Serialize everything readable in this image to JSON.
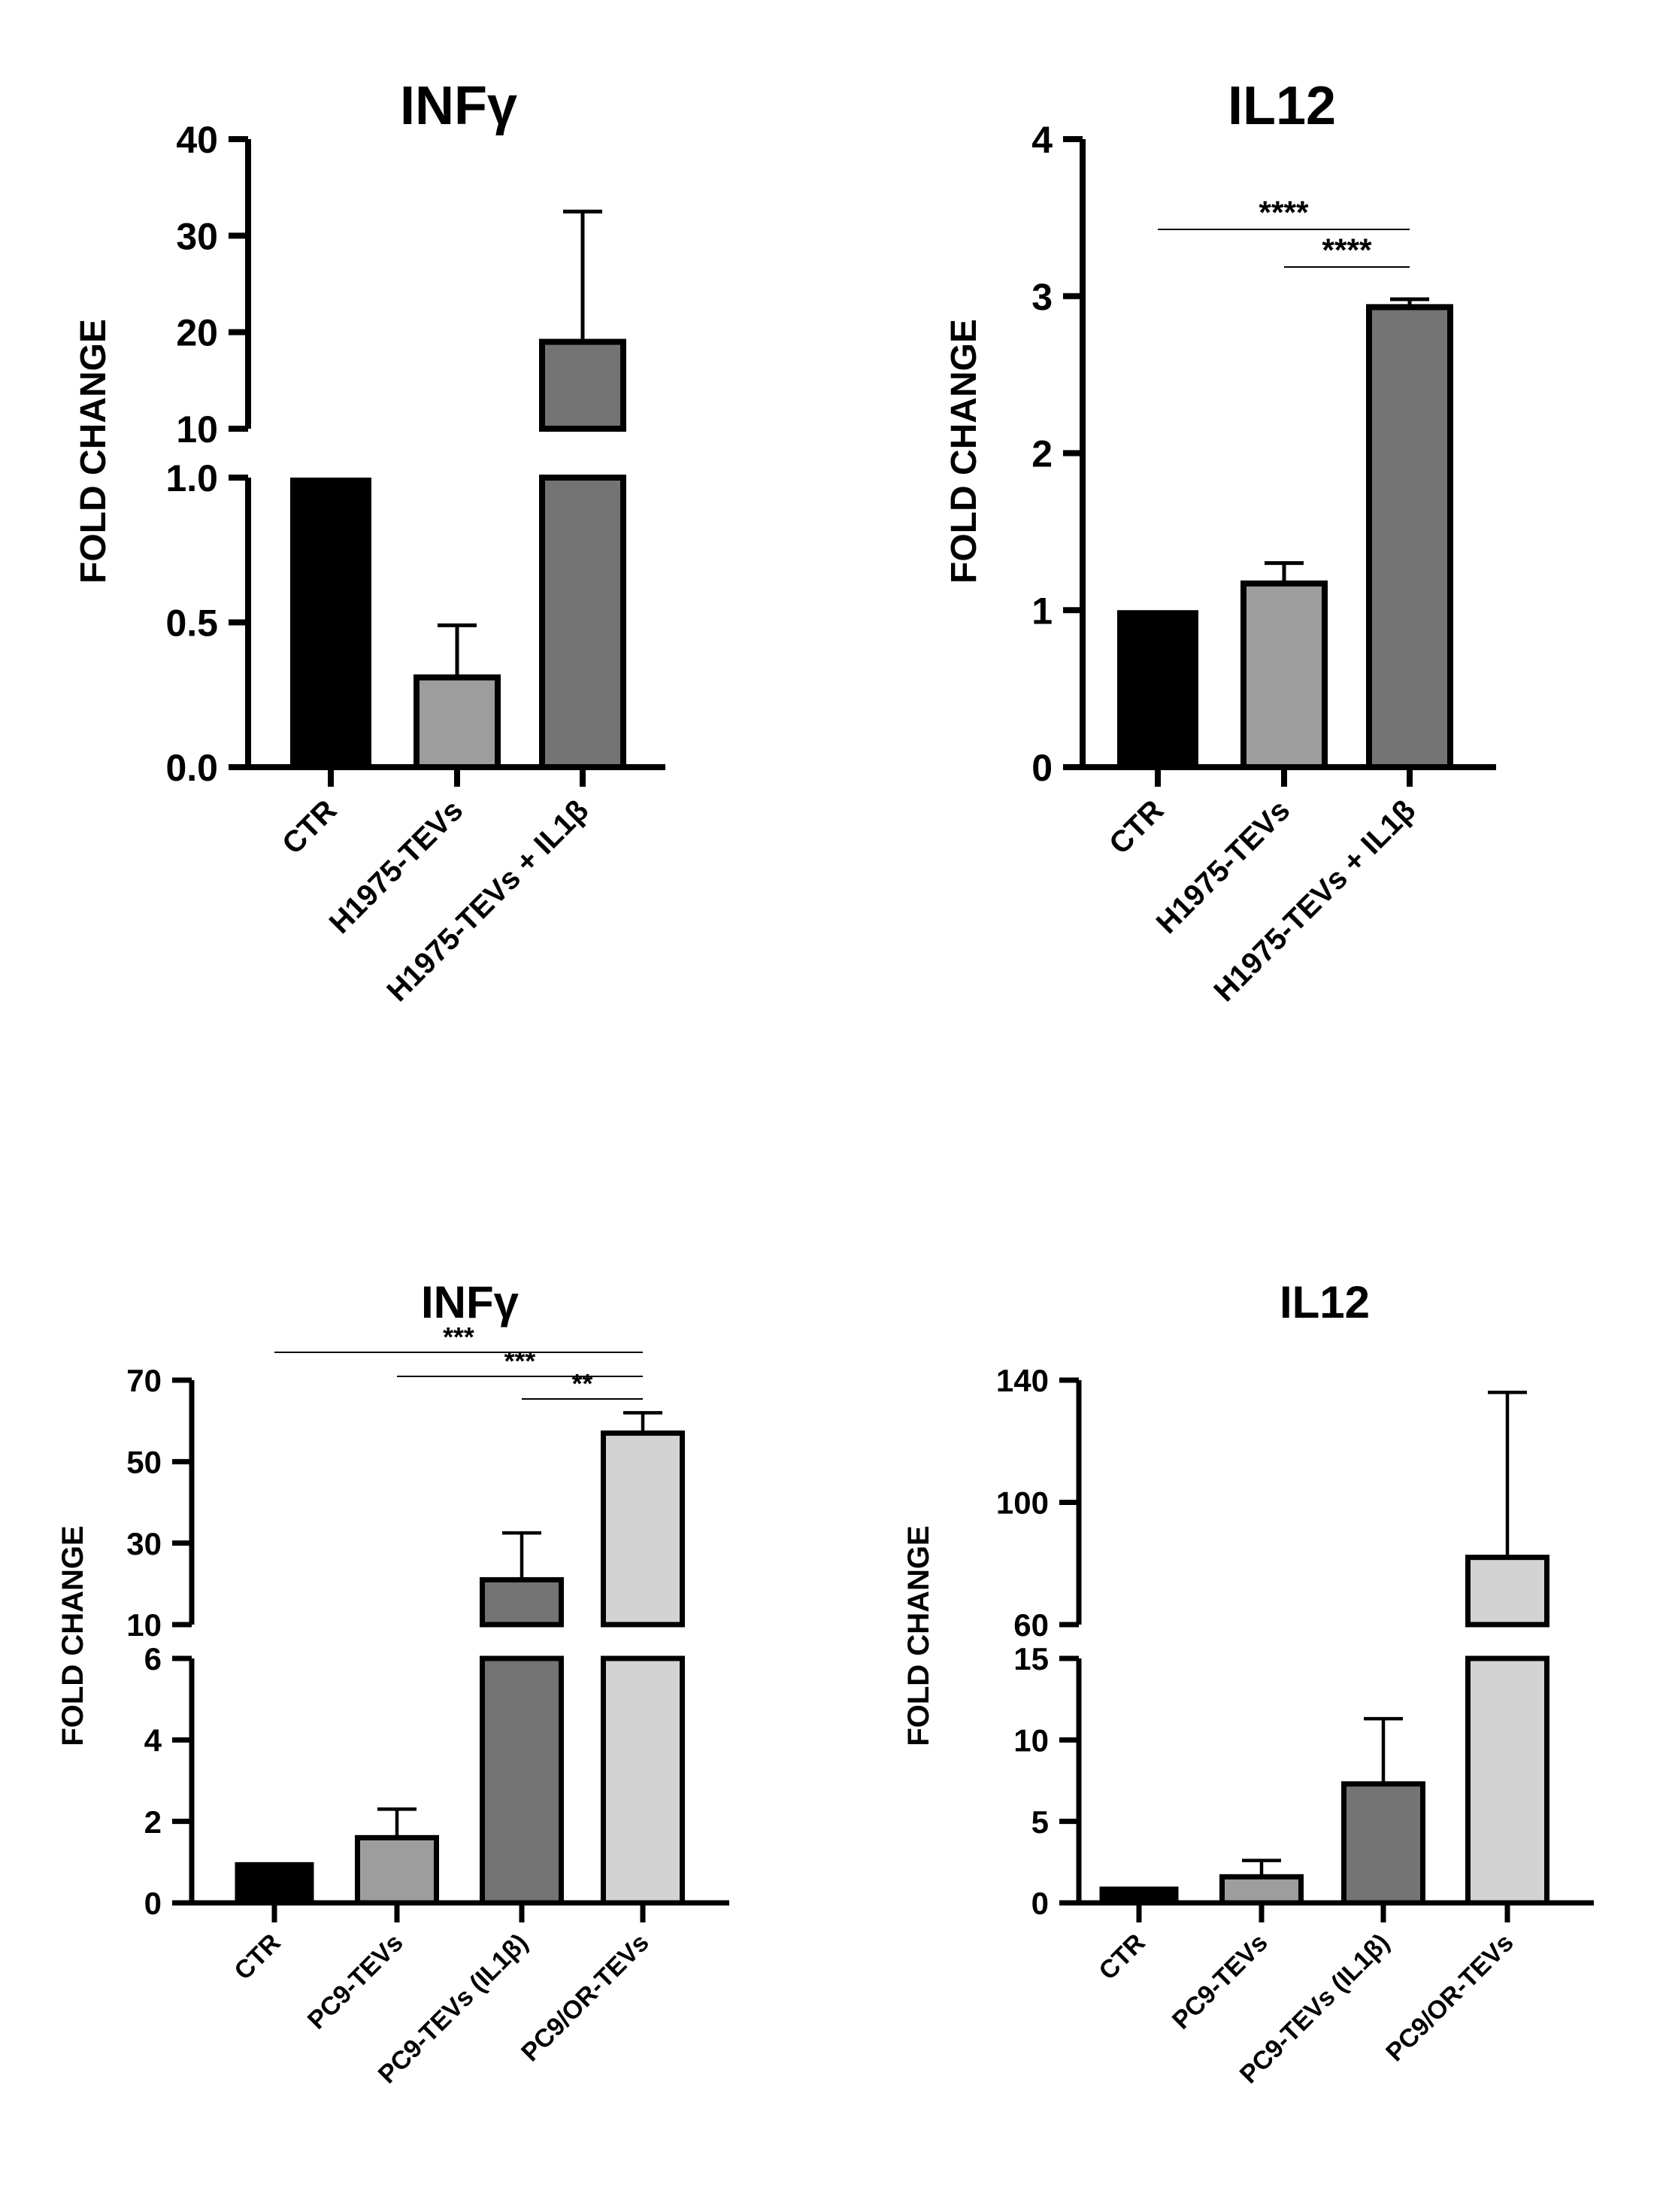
{
  "figure": {
    "panels": 4,
    "layout": "2x2 grid"
  },
  "colors": {
    "ctr": "#000000",
    "group2": "#9d9d9d",
    "group3": "#747474",
    "group4": "#d3d3d3",
    "axis": "#000000"
  },
  "chart_data": [
    {
      "id": "top_left",
      "type": "bar",
      "title": "INFγ",
      "ylabel": "FOLD CHANGE",
      "xlabel": "",
      "categories": [
        "CTR",
        "H1975-TEVs",
        "H1975-TEVs + IL1β"
      ],
      "values": [
        1.0,
        0.31,
        19.0
      ],
      "errors": [
        0,
        0.18,
        13.5
      ],
      "colors": [
        "#000000",
        "#9d9d9d",
        "#747474"
      ],
      "axis_break": {
        "lower": [
          0,
          1.0
        ],
        "upper": [
          10,
          40
        ]
      },
      "lower_ticks": [
        "0.0",
        "0.5",
        "1.0"
      ],
      "upper_ticks": [
        "10",
        "20",
        "30",
        "40"
      ],
      "significance": []
    },
    {
      "id": "top_right",
      "type": "bar",
      "title": "IL12",
      "ylabel": "FOLD CHANGE",
      "xlabel": "",
      "categories": [
        "CTR",
        "H1975-TEVs",
        "H1975-TEVs + IL1β"
      ],
      "values": [
        1.0,
        1.17,
        2.93
      ],
      "errors": [
        0,
        0.13,
        0.05
      ],
      "colors": [
        "#000000",
        "#9d9d9d",
        "#747474"
      ],
      "ylim": [
        0,
        4
      ],
      "ticks": [
        "0",
        "1",
        "2",
        "3",
        "4"
      ],
      "significance": [
        {
          "from": 0,
          "to": 2,
          "label": "****"
        },
        {
          "from": 1,
          "to": 2,
          "label": "****"
        }
      ]
    },
    {
      "id": "bottom_left",
      "type": "bar",
      "title": "INFγ",
      "ylabel": "FOLD CHANGE",
      "xlabel": "",
      "categories": [
        "CTR",
        "PC9-TEVs",
        "PC9-TEVs (IL1β)",
        "PC9/OR-TEVs"
      ],
      "values": [
        1.0,
        1.6,
        21.0,
        57.0
      ],
      "errors": [
        0,
        0.7,
        11.5,
        5.0
      ],
      "colors": [
        "#000000",
        "#9d9d9d",
        "#747474",
        "#d3d3d3"
      ],
      "axis_break": {
        "lower": [
          0,
          6
        ],
        "upper": [
          10,
          70
        ]
      },
      "lower_ticks": [
        "0",
        "2",
        "4",
        "6"
      ],
      "upper_ticks": [
        "10",
        "30",
        "50",
        "70"
      ],
      "significance": [
        {
          "from": 0,
          "to": 3,
          "label": "***"
        },
        {
          "from": 1,
          "to": 3,
          "label": "***"
        },
        {
          "from": 2,
          "to": 3,
          "label": "**"
        }
      ]
    },
    {
      "id": "bottom_right",
      "type": "bar",
      "title": "IL12",
      "ylabel": "FOLD CHANGE",
      "xlabel": "",
      "categories": [
        "CTR",
        "PC9-TEVs",
        "PC9-TEVs (IL1β)",
        "PC9/OR-TEVs"
      ],
      "values": [
        1.0,
        1.6,
        7.3,
        82.0
      ],
      "errors": [
        0,
        1.0,
        4.0,
        54.0
      ],
      "colors": [
        "#000000",
        "#9d9d9d",
        "#747474",
        "#d3d3d3"
      ],
      "axis_break": {
        "lower": [
          0,
          15
        ],
        "upper": [
          60,
          140
        ]
      },
      "lower_ticks": [
        "0",
        "5",
        "10",
        "15"
      ],
      "upper_ticks": [
        "60",
        "100",
        "140"
      ],
      "significance": []
    }
  ]
}
